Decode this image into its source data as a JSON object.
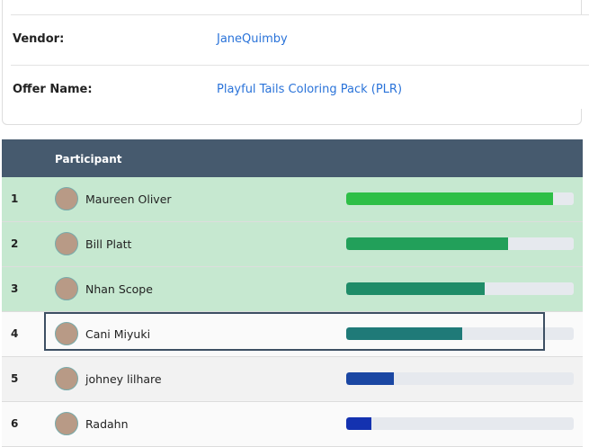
{
  "details": {
    "rows": [
      {
        "label": "Vendor:",
        "value": "JaneQuimby"
      },
      {
        "label": "Offer Name:",
        "value": "Playful Tails Coloring Pack (PLR)"
      }
    ]
  },
  "table": {
    "header": "Participant",
    "rows": [
      {
        "rank": 1,
        "name": "Maureen Oliver",
        "progress": 91,
        "color": "#2ebf47"
      },
      {
        "rank": 2,
        "name": "Bill Platt",
        "progress": 71,
        "color": "#22a05a"
      },
      {
        "rank": 3,
        "name": "Nhan Scope",
        "progress": 61,
        "color": "#1f8c68"
      },
      {
        "rank": 4,
        "name": "Cani Miyuki",
        "progress": 51,
        "color": "#1f7a78"
      },
      {
        "rank": 5,
        "name": "johney lilhare",
        "progress": 21,
        "color": "#1b47a3"
      },
      {
        "rank": 6,
        "name": "Radahn",
        "progress": 11,
        "color": "#1432b0"
      }
    ]
  }
}
